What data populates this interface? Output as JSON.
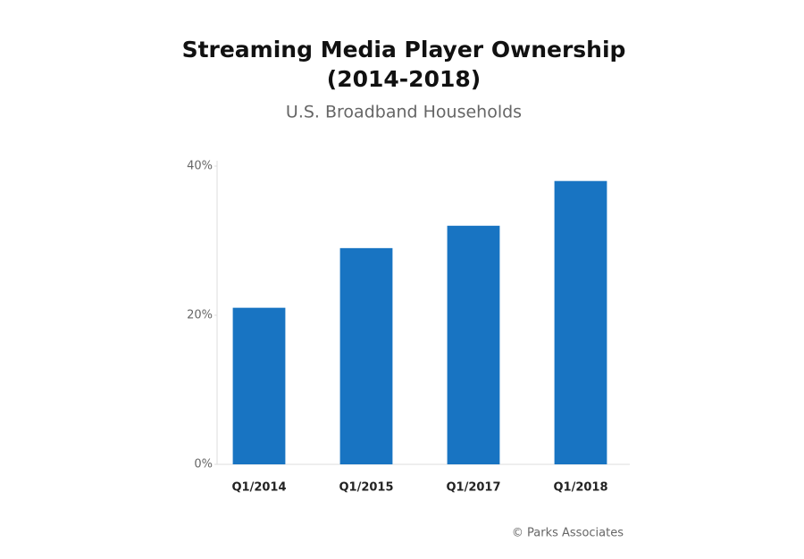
{
  "chart_data": {
    "type": "bar",
    "title": [
      "Streaming Media Player Ownership",
      "(2014-2018)"
    ],
    "subtitle": "U.S. Broadband Households",
    "categories": [
      "Q1/2014",
      "Q1/2015",
      "Q1/2017",
      "Q1/2018"
    ],
    "values": [
      21,
      29,
      32,
      38
    ],
    "color": "#1874c2",
    "ylim": [
      0,
      40
    ],
    "yticks": [
      {
        "value": 0,
        "label": "0%"
      },
      {
        "value": 20,
        "label": "20%"
      },
      {
        "value": 40,
        "label": "40%"
      }
    ],
    "source": "© Parks Associates"
  }
}
